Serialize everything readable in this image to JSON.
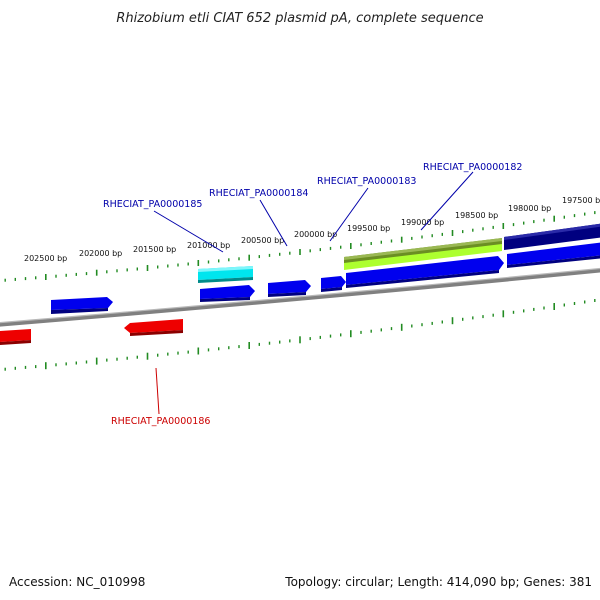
{
  "title": "Rhizobium etli CIAT 652 plasmid pA, complete sequence",
  "footer": {
    "accession": "Accession: NC_010998",
    "summary": "Topology: circular; Length: 414,090 bp; Genes: 381"
  },
  "scale": {
    "labels": [
      "202500 bp",
      "202000 bp",
      "201500 bp",
      "201000 bp",
      "200500 bp",
      "200000 bp",
      "199500 bp",
      "199000 bp",
      "198500 bp",
      "198000 bp",
      "197500 bp"
    ]
  },
  "colors": {
    "forward_gene": "#0000ee",
    "reverse_gene": "#ee0000",
    "highlight_cyan": "#00e5ee",
    "highlight_olive": "#6b8e23",
    "highlight_lime": "#adff2f",
    "navy": "#000080",
    "ruler": "#228b22",
    "backbone": "#808080",
    "forward_label": "#0000aa",
    "reverse_label": "#cc0000"
  },
  "genes": [
    {
      "id": "RHECIAT_PA0000182",
      "strand": "forward",
      "labeled": true
    },
    {
      "id": "RHECIAT_PA0000183",
      "strand": "forward",
      "labeled": true
    },
    {
      "id": "RHECIAT_PA0000184",
      "strand": "forward",
      "labeled": true
    },
    {
      "id": "RHECIAT_PA0000185",
      "strand": "forward",
      "labeled": true
    },
    {
      "id": "RHECIAT_PA0000186",
      "strand": "reverse",
      "labeled": true
    }
  ]
}
